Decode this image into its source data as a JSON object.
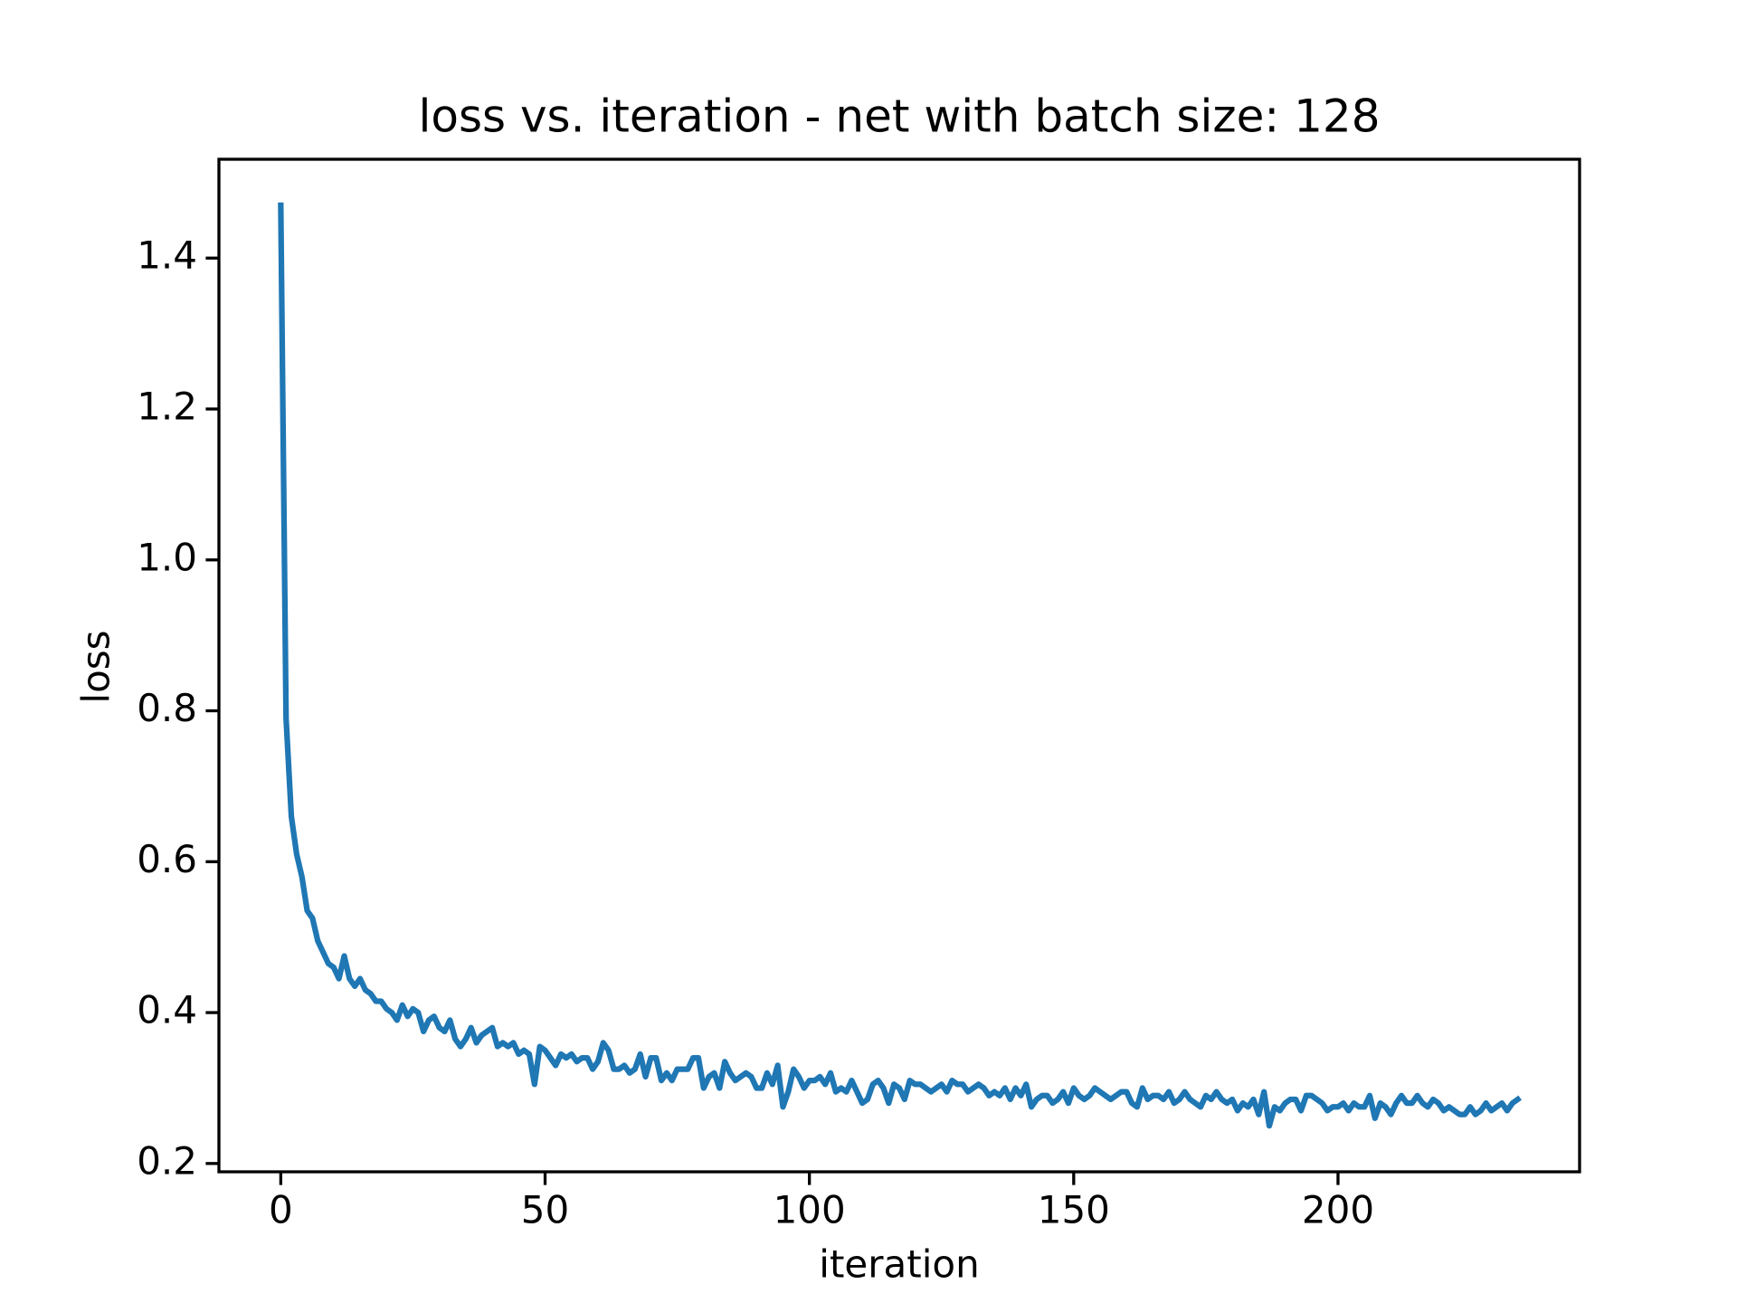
{
  "chart_data": {
    "type": "line",
    "title": "loss vs. iteration - net with batch size: 128",
    "xlabel": "iteration",
    "ylabel": "loss",
    "color": "#1f77b4",
    "xlim": [
      -11.7,
      245.7
    ],
    "ylim": [
      0.189,
      1.531
    ],
    "xticks": [
      0,
      50,
      100,
      150,
      200
    ],
    "yticks": [
      0.2,
      0.4,
      0.6,
      0.8,
      {
        "value": 1,
        "label": "1.0"
      },
      1.2,
      1.4
    ],
    "x": [
      0,
      1,
      2,
      3,
      4,
      5,
      6,
      7,
      8,
      9,
      10,
      11,
      12,
      13,
      14,
      15,
      16,
      17,
      18,
      19,
      20,
      21,
      22,
      23,
      24,
      25,
      26,
      27,
      28,
      29,
      30,
      31,
      32,
      33,
      34,
      35,
      36,
      37,
      38,
      39,
      40,
      41,
      42,
      43,
      44,
      45,
      46,
      47,
      48,
      49,
      50,
      51,
      52,
      53,
      54,
      55,
      56,
      57,
      58,
      59,
      60,
      61,
      62,
      63,
      64,
      65,
      66,
      67,
      68,
      69,
      70,
      71,
      72,
      73,
      74,
      75,
      76,
      77,
      78,
      79,
      80,
      81,
      82,
      83,
      84,
      85,
      86,
      87,
      88,
      89,
      90,
      91,
      92,
      93,
      94,
      95,
      96,
      97,
      98,
      99,
      100,
      101,
      102,
      103,
      104,
      105,
      106,
      107,
      108,
      109,
      110,
      111,
      112,
      113,
      114,
      115,
      116,
      117,
      118,
      119,
      120,
      121,
      122,
      123,
      124,
      125,
      126,
      127,
      128,
      129,
      130,
      131,
      132,
      133,
      134,
      135,
      136,
      137,
      138,
      139,
      140,
      141,
      142,
      143,
      144,
      145,
      146,
      147,
      148,
      149,
      150,
      151,
      152,
      153,
      154,
      155,
      156,
      157,
      158,
      159,
      160,
      161,
      162,
      163,
      164,
      165,
      166,
      167,
      168,
      169,
      170,
      171,
      172,
      173,
      174,
      175,
      176,
      177,
      178,
      179,
      180,
      181,
      182,
      183,
      184,
      185,
      186,
      187,
      188,
      189,
      190,
      191,
      192,
      193,
      194,
      195,
      196,
      197,
      198,
      199,
      200,
      201,
      202,
      203,
      204,
      205,
      206,
      207,
      208,
      209,
      210,
      211,
      212,
      213,
      214,
      215,
      216,
      217,
      218,
      219,
      220,
      221,
      222,
      223,
      224,
      225,
      226,
      227,
      228,
      229,
      230,
      231,
      232,
      233,
      234
    ],
    "values": [
      1.47,
      0.79,
      0.66,
      0.61,
      0.58,
      0.535,
      0.525,
      0.495,
      0.48,
      0.465,
      0.46,
      0.445,
      0.475,
      0.445,
      0.435,
      0.445,
      0.43,
      0.425,
      0.415,
      0.415,
      0.405,
      0.4,
      0.39,
      0.41,
      0.395,
      0.405,
      0.4,
      0.375,
      0.39,
      0.395,
      0.38,
      0.375,
      0.39,
      0.365,
      0.355,
      0.365,
      0.38,
      0.36,
      0.37,
      0.375,
      0.38,
      0.355,
      0.36,
      0.355,
      0.36,
      0.345,
      0.35,
      0.345,
      0.305,
      0.355,
      0.35,
      0.34,
      0.33,
      0.345,
      0.34,
      0.345,
      0.335,
      0.34,
      0.34,
      0.325,
      0.335,
      0.36,
      0.35,
      0.325,
      0.325,
      0.33,
      0.32,
      0.325,
      0.345,
      0.315,
      0.34,
      0.34,
      0.31,
      0.32,
      0.31,
      0.325,
      0.325,
      0.325,
      0.34,
      0.34,
      0.3,
      0.315,
      0.32,
      0.3,
      0.335,
      0.32,
      0.31,
      0.315,
      0.32,
      0.315,
      0.3,
      0.3,
      0.32,
      0.305,
      0.33,
      0.275,
      0.295,
      0.325,
      0.315,
      0.3,
      0.31,
      0.31,
      0.315,
      0.305,
      0.32,
      0.295,
      0.3,
      0.295,
      0.31,
      0.295,
      0.28,
      0.285,
      0.305,
      0.31,
      0.3,
      0.28,
      0.305,
      0.3,
      0.285,
      0.31,
      0.305,
      0.305,
      0.3,
      0.295,
      0.3,
      0.305,
      0.295,
      0.31,
      0.305,
      0.305,
      0.295,
      0.3,
      0.305,
      0.3,
      0.29,
      0.295,
      0.29,
      0.3,
      0.285,
      0.3,
      0.29,
      0.305,
      0.275,
      0.285,
      0.29,
      0.29,
      0.28,
      0.285,
      0.295,
      0.28,
      0.3,
      0.29,
      0.285,
      0.29,
      0.3,
      0.295,
      0.29,
      0.285,
      0.29,
      0.295,
      0.295,
      0.28,
      0.275,
      0.3,
      0.285,
      0.29,
      0.29,
      0.285,
      0.295,
      0.28,
      0.285,
      0.295,
      0.285,
      0.28,
      0.275,
      0.29,
      0.285,
      0.295,
      0.285,
      0.28,
      0.285,
      0.27,
      0.28,
      0.275,
      0.285,
      0.265,
      0.295,
      0.25,
      0.275,
      0.27,
      0.28,
      0.285,
      0.285,
      0.27,
      0.29,
      0.29,
      0.285,
      0.28,
      0.27,
      0.275,
      0.275,
      0.28,
      0.27,
      0.28,
      0.275,
      0.275,
      0.29,
      0.26,
      0.28,
      0.275,
      0.265,
      0.28,
      0.29,
      0.28,
      0.28,
      0.29,
      0.28,
      0.275,
      0.285,
      0.28,
      0.27,
      0.275,
      0.27,
      0.265,
      0.265,
      0.275,
      0.265,
      0.27,
      0.28,
      0.27,
      0.275,
      0.28,
      0.27,
      0.28,
      0.285
    ]
  }
}
